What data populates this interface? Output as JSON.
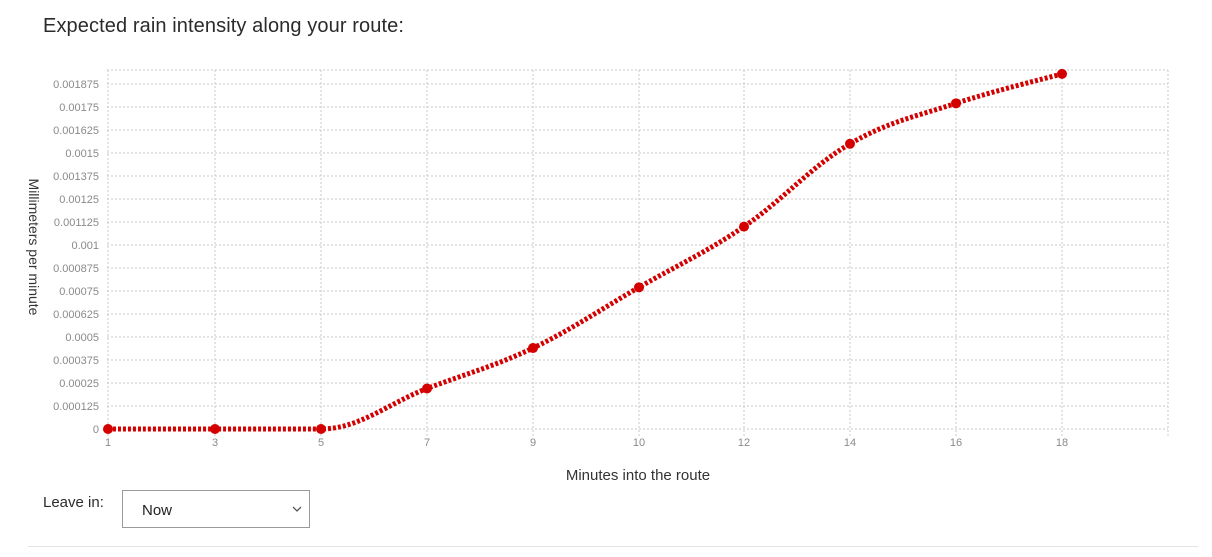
{
  "page": {
    "title": "Expected rain intensity along your route:",
    "leave_label": "Leave in:",
    "leave_select": {
      "selected": "Now"
    }
  },
  "colors": {
    "series": "#d40000",
    "grid": "#c8c8c8",
    "ticks": "#8a8a8a"
  },
  "chart_data": {
    "type": "line",
    "x_categories": [
      "1",
      "3",
      "5",
      "7",
      "9",
      "10",
      "12",
      "14",
      "16",
      "18"
    ],
    "y_ticks": [
      "0",
      "0.000125",
      "0.00025",
      "0.000375",
      "0.0005",
      "0.000625",
      "0.00075",
      "0.000875",
      "0.001",
      "0.001125",
      "0.00125",
      "0.001375",
      "0.0015",
      "0.001625",
      "0.00175",
      "0.001875"
    ],
    "ylim": [
      0,
      0.001875
    ],
    "xlabel": "Minutes into the route",
    "ylabel": "Millimeters per minute",
    "series": [
      {
        "values": [
          0,
          0,
          0,
          0.00022,
          0.00044,
          0.00077,
          0.0011,
          0.00155,
          0.00177,
          0.00193
        ]
      }
    ],
    "grid": true,
    "line_style": "dotted",
    "smooth": true
  }
}
